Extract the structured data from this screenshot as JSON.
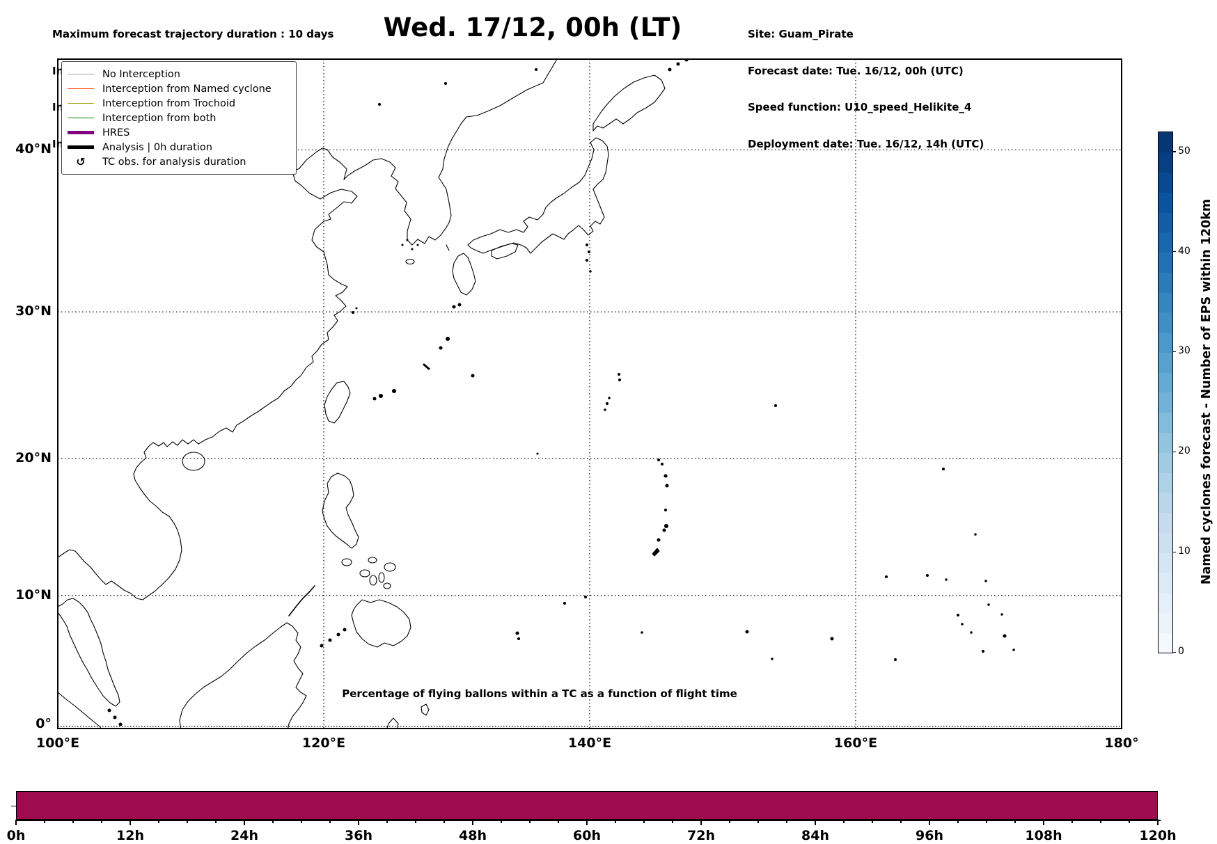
{
  "header": {
    "top_left_lines": [
      "Maximum forecast trajectory duration : 10 days",
      "Intercept distance: 300km",
      "Intercept RW2 (EPS):  30km/h2",
      "Intercept RW2 (HRES): 30km/h2"
    ],
    "title": "Wed. 17/12, 00h (LT)",
    "top_right_lines": [
      "Site: Guam_Pirate",
      "Forecast date: Tue. 16/12, 00h (UTC)",
      "Speed function: U10_speed_Helikite_4",
      "Deployment date: Tue. 16/12, 14h (UTC)"
    ]
  },
  "map": {
    "projection": "mercator",
    "extent": {
      "lon_min": 100,
      "lon_max": 180,
      "lat_min": 0,
      "lat_max": 44.9
    },
    "lon_ticks": [
      {
        "lon": 100,
        "label": "100°E"
      },
      {
        "lon": 120,
        "label": "120°E"
      },
      {
        "lon": 140,
        "label": "140°E"
      },
      {
        "lon": 160,
        "label": "160°E"
      },
      {
        "lon": 180,
        "label": "180°"
      }
    ],
    "lat_ticks": [
      {
        "lat": 40,
        "label": "40°N"
      },
      {
        "lat": 30,
        "label": "30°N"
      },
      {
        "lat": 20,
        "label": "20°N"
      },
      {
        "lat": 10,
        "label": "10°N"
      },
      {
        "lat": 0,
        "label": "0°"
      }
    ],
    "legend": [
      {
        "label": "No Interception",
        "type": "line",
        "color": "#a0a0a0",
        "thickness": 1.5
      },
      {
        "label": "Interception from Named cyclone",
        "type": "line",
        "color": "#ff4500",
        "thickness": 1.5
      },
      {
        "label": "Interception from Trochoid",
        "type": "line",
        "color": "#9c9c00",
        "thickness": 1.5
      },
      {
        "label": "Interception from both",
        "type": "line",
        "color": "#008000",
        "thickness": 1.5
      },
      {
        "label": "HRES",
        "type": "line",
        "color": "#800080",
        "thickness": 4.5
      },
      {
        "label": "Analysis | 0h duration",
        "type": "line",
        "color": "#000000",
        "thickness": 4.5
      },
      {
        "label": "TC obs. for analysis duration",
        "type": "marker",
        "symbol": "↺",
        "color": "#000000"
      }
    ]
  },
  "colorbar": {
    "label": "Named cyclones forecast - Number of EPS within 120km",
    "vmin": 0,
    "vmax": 52,
    "ticks": [
      0,
      10,
      20,
      30,
      40,
      50
    ],
    "colormap": "Blues",
    "colors": [
      "#f7fbff",
      "#deebf7",
      "#c6dbef",
      "#9ecae1",
      "#6baed6",
      "#4292c6",
      "#2171b5",
      "#08519c",
      "#08306b"
    ]
  },
  "chart_data": {
    "type": "bar",
    "title": "Percentage of flying ballons within a TC as a function of flight time",
    "xlabel": "",
    "ylabel": "",
    "x_unit": "hours",
    "x_range": [
      0,
      120
    ],
    "x_tick_labels": [
      "0h",
      "12h",
      "24h",
      "36h",
      "48h",
      "60h",
      "72h",
      "84h",
      "96h",
      "108h",
      "120h"
    ],
    "x_tick_values": [
      0,
      12,
      24,
      36,
      48,
      60,
      72,
      84,
      96,
      108,
      120
    ],
    "minor_tick_step": 3,
    "series": [
      {
        "name": "Percentage of flying balloons within a TC",
        "x": [
          0,
          120
        ],
        "values": [
          100,
          100
        ]
      }
    ],
    "bar_color": "#9e0b4f"
  }
}
